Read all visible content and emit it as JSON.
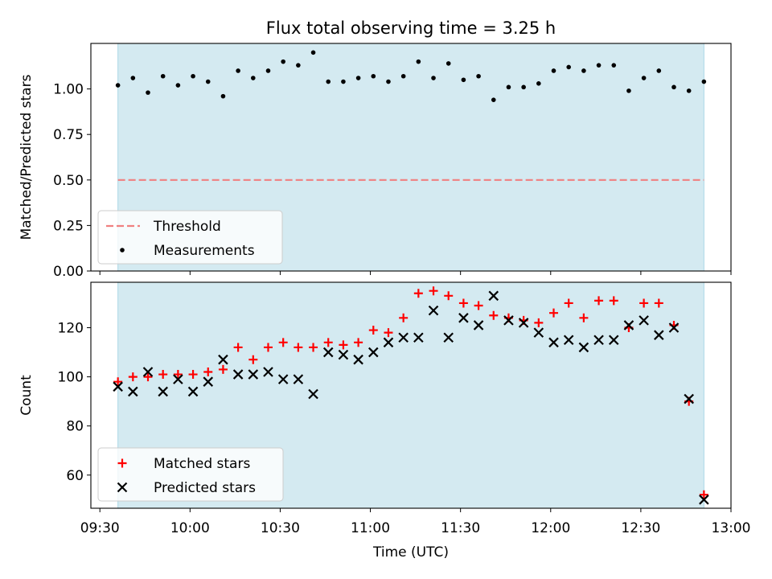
{
  "chart_data": {
    "type": "scatter",
    "title": "Flux total observing time = 3.25 h",
    "xlabel": "Time (UTC)",
    "x_ticks": [
      "09:30",
      "10:00",
      "10:30",
      "11:00",
      "11:30",
      "12:00",
      "12:30",
      "13:00"
    ],
    "x_range": [
      "09:27",
      "13:00"
    ],
    "shaded_interval": [
      "09:36",
      "12:51"
    ],
    "colors": {
      "shade": "#d4eaf1",
      "shade_edge": "#add8e6",
      "threshold": "#f08080",
      "matched": "#ff0000",
      "predicted": "#000000",
      "measurements": "#000000"
    },
    "panels": [
      {
        "id": "ratio",
        "ylabel": "Matched/Predicted stars",
        "ylim": [
          0,
          1.25
        ],
        "yticks": [
          "0.00",
          "0.25",
          "0.50",
          "0.75",
          "1.00"
        ],
        "threshold": 0.5,
        "legend_position": "lower left",
        "legend": [
          "Threshold",
          "Measurements"
        ],
        "series": [
          {
            "name": "Measurements",
            "marker": "dot",
            "x": [
              "09:36",
              "09:41",
              "09:46",
              "09:51",
              "09:56",
              "10:01",
              "10:06",
              "10:11",
              "10:16",
              "10:21",
              "10:26",
              "10:31",
              "10:36",
              "10:41",
              "10:46",
              "10:51",
              "10:56",
              "11:01",
              "11:06",
              "11:11",
              "11:16",
              "11:21",
              "11:26",
              "11:31",
              "11:36",
              "11:41",
              "11:46",
              "11:51",
              "11:56",
              "12:01",
              "12:06",
              "12:11",
              "12:16",
              "12:21",
              "12:26",
              "12:31",
              "12:36",
              "12:41",
              "12:46",
              "12:51"
            ],
            "values": [
              1.02,
              1.06,
              0.98,
              1.07,
              1.02,
              1.07,
              1.04,
              0.96,
              1.1,
              1.06,
              1.1,
              1.15,
              1.13,
              1.2,
              1.04,
              1.04,
              1.06,
              1.07,
              1.04,
              1.07,
              1.15,
              1.06,
              1.14,
              1.05,
              1.07,
              0.94,
              1.01,
              1.01,
              1.03,
              1.1,
              1.12,
              1.1,
              1.13,
              1.13,
              0.99,
              1.06,
              1.1,
              1.01,
              0.99,
              1.04
            ]
          }
        ]
      },
      {
        "id": "counts",
        "ylabel": "Count",
        "ylim": [
          46.5,
          138.5
        ],
        "yticks": [
          "60",
          "80",
          "100",
          "120"
        ],
        "legend_position": "lower left",
        "legend": [
          "Matched stars",
          "Predicted stars"
        ],
        "series": [
          {
            "name": "Matched stars",
            "marker": "plus",
            "x": [
              "09:36",
              "09:41",
              "09:46",
              "09:51",
              "09:56",
              "10:01",
              "10:06",
              "10:11",
              "10:16",
              "10:21",
              "10:26",
              "10:31",
              "10:36",
              "10:41",
              "10:46",
              "10:51",
              "10:56",
              "11:01",
              "11:06",
              "11:11",
              "11:16",
              "11:21",
              "11:26",
              "11:31",
              "11:36",
              "11:41",
              "11:46",
              "11:51",
              "11:56",
              "12:01",
              "12:06",
              "12:11",
              "12:16",
              "12:21",
              "12:26",
              "12:31",
              "12:36",
              "12:41",
              "12:46",
              "12:51"
            ],
            "values": [
              98,
              100,
              100,
              101,
              101,
              101,
              102,
              103,
              112,
              107,
              112,
              114,
              112,
              112,
              114,
              113,
              114,
              119,
              118,
              124,
              134,
              135,
              133,
              130,
              129,
              125,
              124,
              123,
              122,
              126,
              130,
              124,
              131,
              131,
              120,
              130,
              130,
              121,
              90,
              52
            ]
          },
          {
            "name": "Predicted stars",
            "marker": "x",
            "x": [
              "09:36",
              "09:41",
              "09:46",
              "09:51",
              "09:56",
              "10:01",
              "10:06",
              "10:11",
              "10:16",
              "10:21",
              "10:26",
              "10:31",
              "10:36",
              "10:41",
              "10:46",
              "10:51",
              "10:56",
              "11:01",
              "11:06",
              "11:11",
              "11:16",
              "11:21",
              "11:26",
              "11:31",
              "11:36",
              "11:41",
              "11:46",
              "11:51",
              "11:56",
              "12:01",
              "12:06",
              "12:11",
              "12:16",
              "12:21",
              "12:26",
              "12:31",
              "12:36",
              "12:41",
              "12:46",
              "12:51"
            ],
            "values": [
              96,
              94,
              102,
              94,
              99,
              94,
              98,
              107,
              101,
              101,
              102,
              99,
              99,
              93,
              110,
              109,
              107,
              110,
              114,
              116,
              116,
              127,
              116,
              124,
              121,
              133,
              123,
              122,
              118,
              114,
              115,
              112,
              115,
              115,
              121,
              123,
              117,
              120,
              91,
              50
            ]
          }
        ]
      }
    ]
  }
}
